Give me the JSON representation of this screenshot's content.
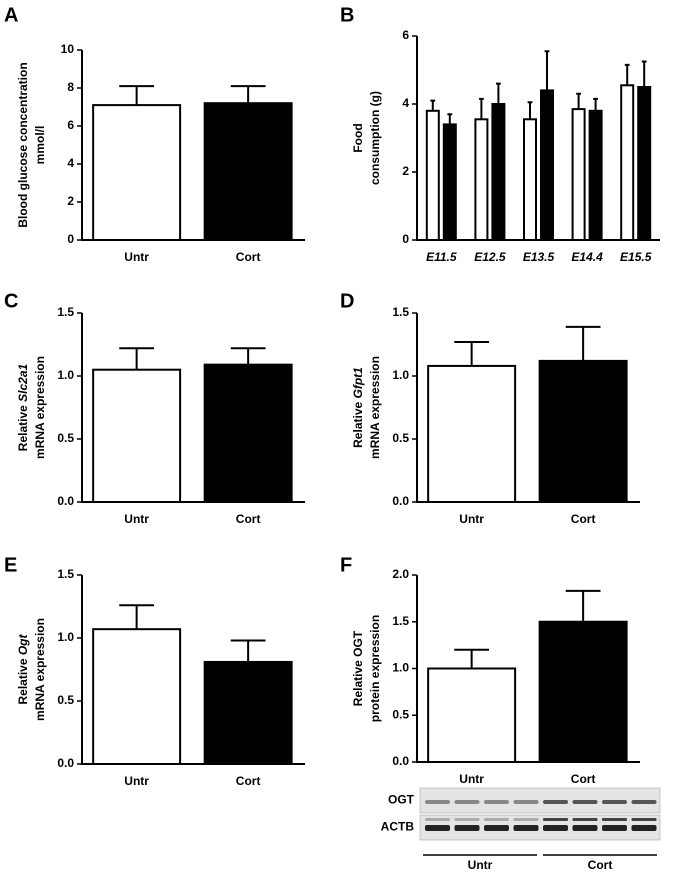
{
  "chart_data": [
    {
      "type": "bar",
      "panel": "A",
      "ylabel": [
        [
          {
            "text": "Blood glucose concentration"
          }
        ],
        [
          {
            "text": "mmol/l"
          }
        ]
      ],
      "categories": [
        "Untr",
        "Cort"
      ],
      "values": [
        7.1,
        7.2
      ],
      "errors": [
        1.0,
        0.9
      ],
      "colors": [
        "#ffffff",
        "#000000"
      ],
      "ylim": [
        0,
        10
      ],
      "yticks": [
        0,
        2,
        4,
        6,
        8,
        10
      ]
    },
    {
      "type": "grouped_bar",
      "panel": "B",
      "ylabel": [
        [
          {
            "text": "Food"
          }
        ],
        [
          {
            "text": "consumption (g)"
          }
        ]
      ],
      "categories": [
        "E11.5",
        "E12.5",
        "E13.5",
        "E14.4",
        "E15.5"
      ],
      "series": [
        {
          "color": "#ffffff",
          "values": [
            3.8,
            3.55,
            3.55,
            3.85,
            4.55
          ],
          "errors": [
            0.3,
            0.6,
            0.5,
            0.45,
            0.6
          ]
        },
        {
          "color": "#000000",
          "values": [
            3.4,
            4.0,
            4.4,
            3.8,
            4.5
          ],
          "errors": [
            0.3,
            0.6,
            1.15,
            0.35,
            0.75
          ]
        }
      ],
      "ylim": [
        0,
        6
      ],
      "yticks": [
        0,
        2,
        4,
        6
      ]
    },
    {
      "type": "bar",
      "panel": "C",
      "ylabel": [
        [
          {
            "text": "Relative "
          },
          {
            "text": "Slc2a1",
            "style": "italic"
          }
        ],
        [
          {
            "text": "mRNA expression"
          }
        ]
      ],
      "categories": [
        "Untr",
        "Cort"
      ],
      "values": [
        1.05,
        1.09
      ],
      "errors": [
        0.17,
        0.13
      ],
      "colors": [
        "#ffffff",
        "#000000"
      ],
      "ylim": [
        0,
        1.5
      ],
      "yticks": [
        {
          "value": 0,
          "label": "0.0"
        },
        0.5,
        {
          "value": 1,
          "label": "1.0"
        },
        1.5
      ]
    },
    {
      "type": "bar",
      "panel": "D",
      "ylabel": [
        [
          {
            "text": "Relative "
          },
          {
            "text": "Gfpt1",
            "style": "italic"
          }
        ],
        [
          {
            "text": "mRNA expression"
          }
        ]
      ],
      "categories": [
        "Untr",
        "Cort"
      ],
      "values": [
        1.08,
        1.12
      ],
      "errors": [
        0.19,
        0.27
      ],
      "colors": [
        "#ffffff",
        "#000000"
      ],
      "ylim": [
        0,
        1.5
      ],
      "yticks": [
        {
          "value": 0,
          "label": "0.0"
        },
        0.5,
        {
          "value": 1,
          "label": "1.0"
        },
        1.5
      ]
    },
    {
      "type": "bar",
      "panel": "E",
      "ylabel": [
        [
          {
            "text": "Relative "
          },
          {
            "text": "Ogt",
            "style": "italic"
          }
        ],
        [
          {
            "text": "mRNA expression"
          }
        ]
      ],
      "categories": [
        "Untr",
        "Cort"
      ],
      "values": [
        1.07,
        0.81
      ],
      "errors": [
        0.19,
        0.17
      ],
      "colors": [
        "#ffffff",
        "#000000"
      ],
      "ylim": [
        0,
        1.5
      ],
      "yticks": [
        {
          "value": 0,
          "label": "0.0"
        },
        0.5,
        {
          "value": 1,
          "label": "1.0"
        },
        1.5
      ]
    },
    {
      "type": "bar",
      "panel": "F",
      "ylabel": [
        [
          {
            "text": "Relative OGT"
          }
        ],
        [
          {
            "text": "protein expression"
          }
        ]
      ],
      "categories": [
        "Untr",
        "Cort"
      ],
      "values": [
        1.0,
        1.5
      ],
      "errors": [
        0.2,
        0.33
      ],
      "colors": [
        "#ffffff",
        "#000000"
      ],
      "ylim": [
        0,
        2
      ],
      "yticks": [
        {
          "value": 0,
          "label": "0.0"
        },
        0.5,
        {
          "value": 1,
          "label": "1.0"
        },
        1.5,
        {
          "value": 2,
          "label": "2.0"
        }
      ],
      "blot": {
        "rows": [
          "OGT",
          "ACTB"
        ],
        "groups": [
          "Untr",
          "Cort"
        ]
      }
    }
  ]
}
